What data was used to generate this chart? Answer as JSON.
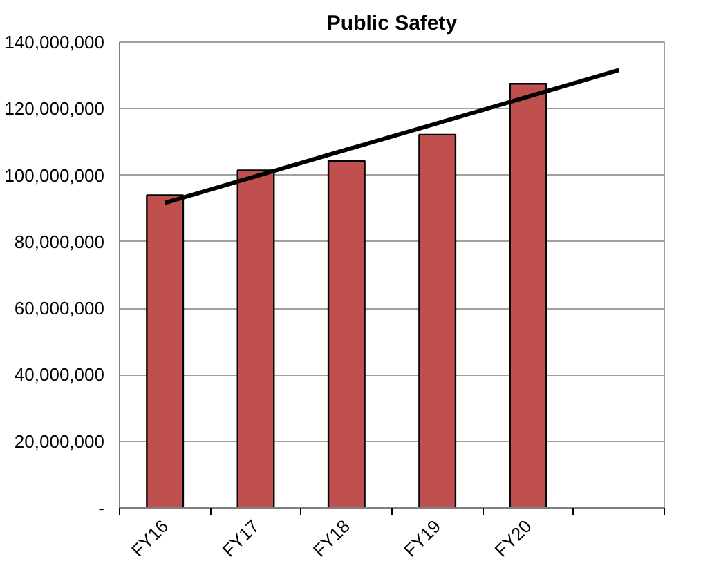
{
  "chart_data": {
    "type": "bar",
    "title": "Public Safety",
    "categories": [
      "FY16",
      "FY17",
      "FY18",
      "FY19",
      "FY20",
      null
    ],
    "series": [
      {
        "color": "#c0504d",
        "values": [
          94000000,
          101500000,
          104300000,
          112200000,
          127500000,
          null
        ]
      },
      {
        "type": "line",
        "color": "#000000",
        "values": [
          91700000,
          99700000,
          107700000,
          115600000,
          123600000,
          131600000
        ]
      }
    ],
    "ylim": [
      0,
      140000000
    ],
    "yticks": [
      {
        "value": 0,
        "label": "-"
      },
      {
        "value": 20000000,
        "label": "20,000,000"
      },
      {
        "value": 40000000,
        "label": "40,000,000"
      },
      {
        "value": 60000000,
        "label": "60,000,000"
      },
      {
        "value": 80000000,
        "label": "80,000,000"
      },
      {
        "value": 100000000,
        "label": "100,000,000"
      },
      {
        "value": 120000000,
        "label": "120,000,000"
      },
      {
        "value": 140000000,
        "label": "140,000,000"
      }
    ],
    "grid": "y"
  }
}
